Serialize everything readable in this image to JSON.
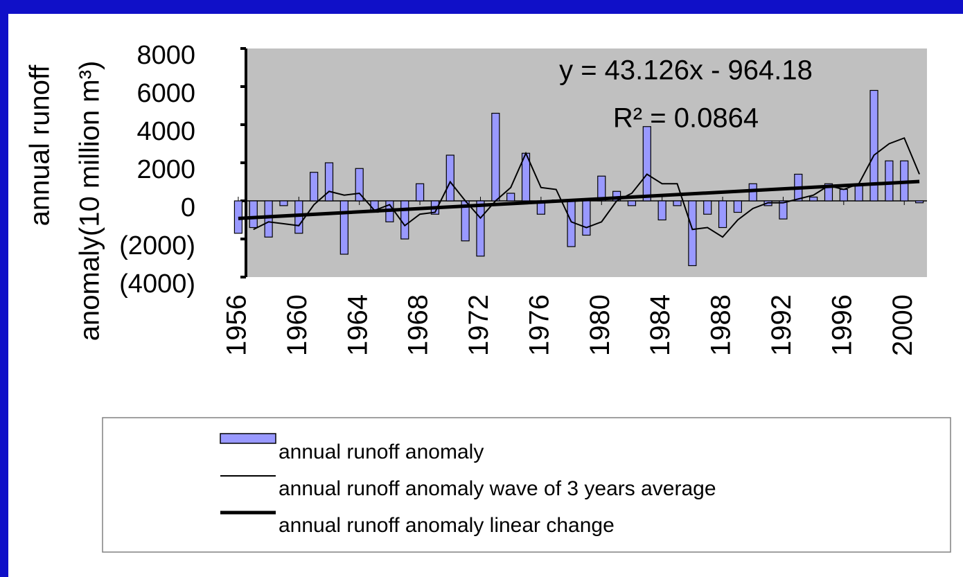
{
  "chart_data": {
    "type": "bar",
    "ylabel": [
      "annual runoff",
      "anomaly(10 million m³)"
    ],
    "x": [
      1956,
      1957,
      1958,
      1959,
      1960,
      1961,
      1962,
      1963,
      1964,
      1965,
      1966,
      1967,
      1968,
      1969,
      1970,
      1971,
      1972,
      1973,
      1974,
      1975,
      1976,
      1977,
      1978,
      1979,
      1980,
      1981,
      1982,
      1983,
      1984,
      1985,
      1986,
      1987,
      1988,
      1989,
      1990,
      1991,
      1992,
      1993,
      1994,
      1995,
      1996,
      1997,
      1998,
      1999,
      2000,
      2001
    ],
    "xlim": [
      1955.5,
      2001.5
    ],
    "xticks": [
      1956,
      1960,
      1964,
      1968,
      1972,
      1976,
      1980,
      1984,
      1988,
      1992,
      1996,
      2000
    ],
    "ylim": [
      -4000,
      8000
    ],
    "yticks": [
      {
        "value": -4000,
        "label": "(4000)"
      },
      {
        "value": -2000,
        "label": "(2000)"
      },
      0,
      2000,
      4000,
      6000,
      8000
    ],
    "series": [
      {
        "name": "annual runoff anomaly",
        "type": "bar",
        "color": "#9999ff",
        "values": [
          -1700,
          -1400,
          -1900,
          -250,
          -1700,
          1500,
          2000,
          -2800,
          1700,
          -600,
          -1100,
          -2000,
          900,
          -700,
          2400,
          -2100,
          -2900,
          4600,
          400,
          2500,
          -700,
          50,
          -2400,
          -1800,
          1300,
          500,
          -250,
          3900,
          -1000,
          -250,
          -3400,
          -700,
          -1400,
          -600,
          900,
          -250,
          -950,
          1400,
          200,
          900,
          600,
          900,
          5800,
          2100,
          2100,
          -100
        ]
      },
      {
        "name": "annual runoff anomaly wave of 3 years average",
        "type": "line",
        "color": "#000000",
        "values": [
          null,
          -1500,
          -1100,
          -1200,
          -1300,
          -200,
          500,
          300,
          400,
          -500,
          -200,
          -1300,
          -700,
          -600,
          1000,
          0,
          -900,
          0,
          700,
          2500,
          700,
          600,
          -1100,
          -1400,
          -1100,
          0,
          400,
          1400,
          900,
          900,
          -1500,
          -1400,
          -1900,
          -1000,
          -400,
          -100,
          -100,
          100,
          300,
          800,
          600,
          900,
          2400,
          3000,
          3300,
          1400
        ]
      },
      {
        "name": "annual runoff anomaly linear change",
        "type": "trend",
        "color": "#000000",
        "x": [
          1956,
          2001
        ],
        "values": [
          -921,
          1019
        ]
      }
    ],
    "equation": "y = 43.126x - 964.18",
    "r_squared": "R² = 0.0864",
    "negative_tick_color": "#ff0000"
  }
}
